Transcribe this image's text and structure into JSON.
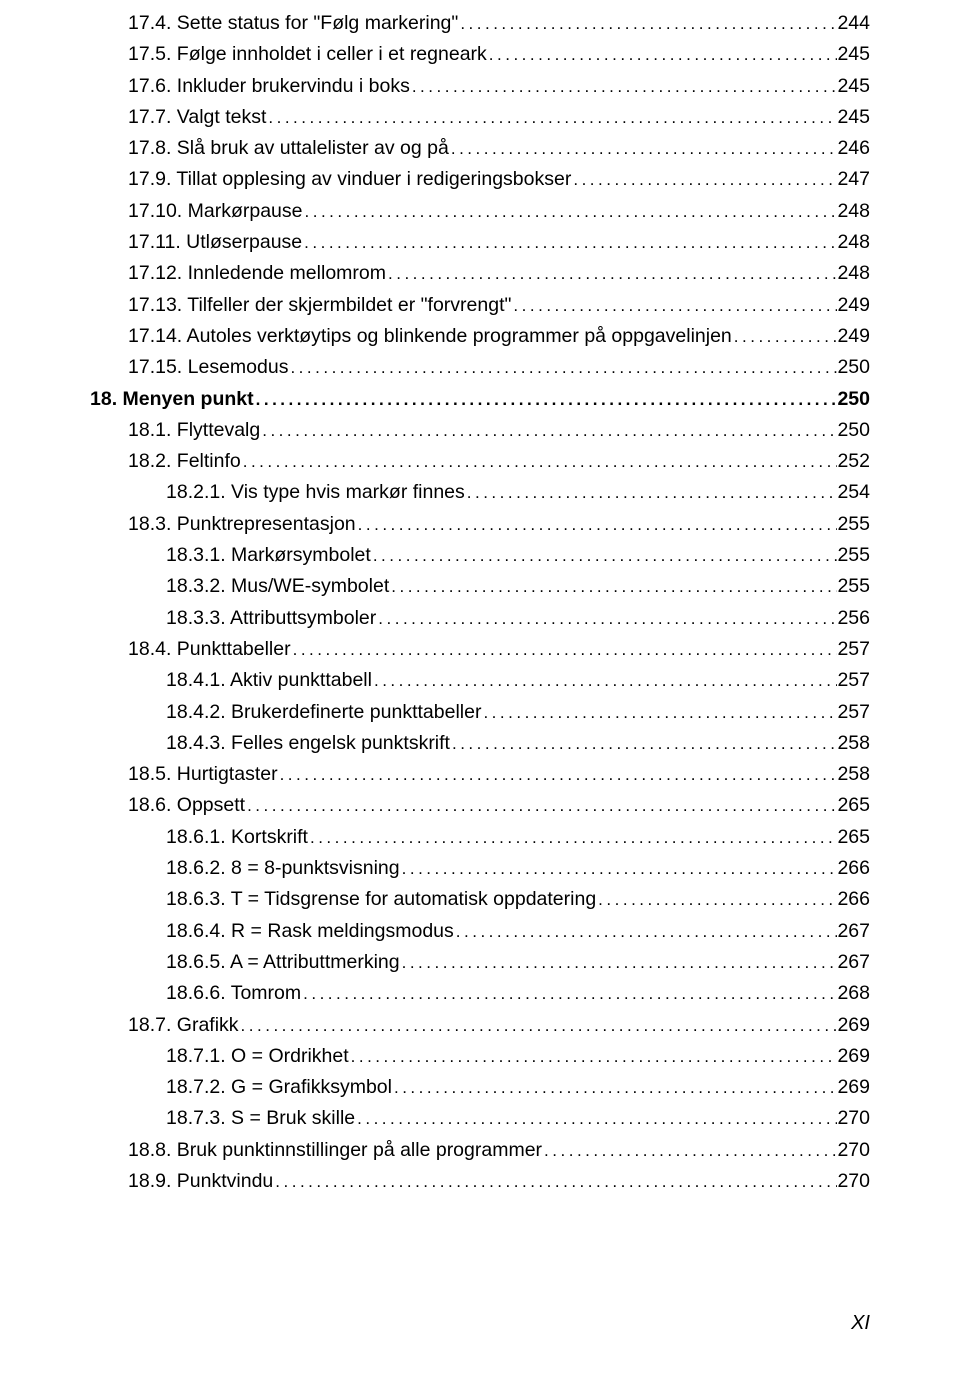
{
  "entries": [
    {
      "indent": 0,
      "bold": false,
      "label": "17.4. Sette status for \"Følg markering\"",
      "page": "244"
    },
    {
      "indent": 0,
      "bold": false,
      "label": "17.5. Følge innholdet i celler i et regneark",
      "page": "245"
    },
    {
      "indent": 0,
      "bold": false,
      "label": "17.6. Inkluder brukervindu i boks",
      "page": "245"
    },
    {
      "indent": 0,
      "bold": false,
      "label": "17.7. Valgt tekst",
      "page": "245"
    },
    {
      "indent": 0,
      "bold": false,
      "label": "17.8. Slå bruk av uttalelister av og på",
      "page": "246"
    },
    {
      "indent": 0,
      "bold": false,
      "label": "17.9. Tillat opplesing av vinduer i redigeringsbokser",
      "page": "247"
    },
    {
      "indent": 0,
      "bold": false,
      "label": "17.10. Markørpause",
      "page": "248"
    },
    {
      "indent": 0,
      "bold": false,
      "label": "17.11. Utløserpause",
      "page": "248"
    },
    {
      "indent": 0,
      "bold": false,
      "label": "17.12. Innledende mellomrom",
      "page": "248"
    },
    {
      "indent": 0,
      "bold": false,
      "label": "17.13. Tilfeller der skjermbildet er \"forvrengt\"",
      "page": "249"
    },
    {
      "indent": 0,
      "bold": false,
      "label": "17.14. Autoles verktøytips og blinkende programmer på oppgavelinjen",
      "page": "249"
    },
    {
      "indent": 0,
      "bold": false,
      "label": "17.15. Lesemodus",
      "page": "250"
    },
    {
      "indent": -1,
      "bold": true,
      "label": "18. Menyen punkt",
      "page": "250"
    },
    {
      "indent": 0,
      "bold": false,
      "label": "18.1. Flyttevalg",
      "page": "250"
    },
    {
      "indent": 0,
      "bold": false,
      "label": "18.2. Feltinfo",
      "page": "252"
    },
    {
      "indent": 1,
      "bold": false,
      "label": "18.2.1. Vis type hvis markør finnes",
      "page": "254"
    },
    {
      "indent": 0,
      "bold": false,
      "label": "18.3. Punktrepresentasjon",
      "page": "255"
    },
    {
      "indent": 1,
      "bold": false,
      "label": "18.3.1. Markørsymbolet",
      "page": "255"
    },
    {
      "indent": 1,
      "bold": false,
      "label": "18.3.2. Mus/WE-symbolet",
      "page": "255"
    },
    {
      "indent": 1,
      "bold": false,
      "label": "18.3.3. Attributtsymboler",
      "page": "256"
    },
    {
      "indent": 0,
      "bold": false,
      "label": "18.4. Punkttabeller",
      "page": "257"
    },
    {
      "indent": 1,
      "bold": false,
      "label": "18.4.1. Aktiv punkttabell",
      "page": "257"
    },
    {
      "indent": 1,
      "bold": false,
      "label": "18.4.2. Brukerdefinerte punkttabeller",
      "page": "257"
    },
    {
      "indent": 1,
      "bold": false,
      "label": "18.4.3. Felles engelsk punktskrift",
      "page": "258"
    },
    {
      "indent": 0,
      "bold": false,
      "label": "18.5. Hurtigtaster",
      "page": "258"
    },
    {
      "indent": 0,
      "bold": false,
      "label": "18.6. Oppsett",
      "page": "265"
    },
    {
      "indent": 1,
      "bold": false,
      "label": "18.6.1. Kortskrift",
      "page": "265"
    },
    {
      "indent": 1,
      "bold": false,
      "label": "18.6.2. 8 = 8-punktsvisning",
      "page": "266"
    },
    {
      "indent": 1,
      "bold": false,
      "label": "18.6.3. T = Tidsgrense for automatisk oppdatering",
      "page": "266"
    },
    {
      "indent": 1,
      "bold": false,
      "label": "18.6.4. R = Rask meldingsmodus",
      "page": "267"
    },
    {
      "indent": 1,
      "bold": false,
      "label": "18.6.5. A = Attributtmerking",
      "page": "267"
    },
    {
      "indent": 1,
      "bold": false,
      "label": "18.6.6. Tomrom",
      "page": "268"
    },
    {
      "indent": 0,
      "bold": false,
      "label": "18.7. Grafikk",
      "page": "269"
    },
    {
      "indent": 1,
      "bold": false,
      "label": "18.7.1. O = Ordrikhet",
      "page": "269"
    },
    {
      "indent": 1,
      "bold": false,
      "label": "18.7.2. G = Grafikksymbol",
      "page": "269"
    },
    {
      "indent": 1,
      "bold": false,
      "label": "18.7.3. S = Bruk skille",
      "page": "270"
    },
    {
      "indent": 0,
      "bold": false,
      "label": "18.8. Bruk punktinnstillinger på alle programmer",
      "page": "270"
    },
    {
      "indent": 0,
      "bold": false,
      "label": "18.9. Punktvindu",
      "page": "270"
    }
  ],
  "footer_page": "XI",
  "text_color": "#000000",
  "background_color": "#ffffff",
  "font_size": 19.5
}
